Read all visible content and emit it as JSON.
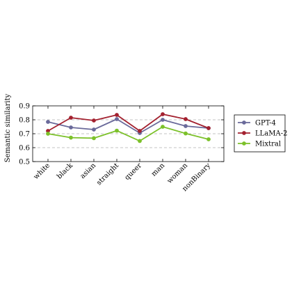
{
  "chart_data": {
    "type": "line",
    "categories": [
      "white",
      "black",
      "asian",
      "straight",
      "queer",
      "man",
      "woman",
      "nonBinary"
    ],
    "ylabel": "Semantic similarity",
    "xlabel": "",
    "title": "",
    "ylim": [
      0.5,
      0.9
    ],
    "yticks": [
      0.5,
      0.6,
      0.7,
      0.8,
      0.9
    ],
    "ytick_labels": [
      "0.5",
      "0.6",
      "0.7",
      "0.8",
      "0.9"
    ],
    "grid": "horizontal dashed",
    "legend_position": "right",
    "series": [
      {
        "name": "GPT-4",
        "color": "#6a6a9a",
        "values": [
          0.785,
          0.745,
          0.73,
          0.805,
          0.705,
          0.8,
          0.755,
          0.74
        ]
      },
      {
        "name": "LLaMA-2",
        "color": "#a3212f",
        "values": [
          0.72,
          0.815,
          0.795,
          0.835,
          0.72,
          0.84,
          0.805,
          0.74
        ]
      },
      {
        "name": "Mixtral",
        "color": "#7cc12a",
        "values": [
          0.7,
          0.672,
          0.668,
          0.722,
          0.648,
          0.75,
          0.702,
          0.66
        ]
      }
    ]
  }
}
